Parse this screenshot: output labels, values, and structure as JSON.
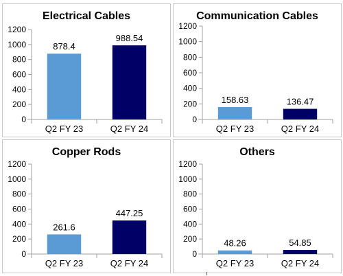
{
  "chart_data": [
    {
      "type": "bar",
      "title": "Electrical Cables",
      "categories": [
        "Q2 FY 23",
        "Q2 FY 24"
      ],
      "values": [
        878.4,
        988.54
      ],
      "value_labels": [
        "878.4",
        "988.54"
      ],
      "colors": [
        "#5b9bd5",
        "#000066"
      ],
      "ylim": [
        0,
        1200
      ],
      "yticks": [
        0,
        200,
        400,
        600,
        800,
        1000,
        1200
      ],
      "grid": false,
      "legend": "none"
    },
    {
      "type": "bar",
      "title": "Communication Cables",
      "categories": [
        "Q2 FY 23",
        "Q2 FY 24"
      ],
      "values": [
        158.63,
        136.47
      ],
      "value_labels": [
        "158.63",
        "136.47"
      ],
      "colors": [
        "#5b9bd5",
        "#000066"
      ],
      "ylim": [
        0,
        1200
      ],
      "yticks": [
        0,
        200,
        400,
        600,
        800,
        1000,
        1200
      ],
      "grid": false,
      "legend": "none"
    },
    {
      "type": "bar",
      "title": "Copper Rods",
      "categories": [
        "Q2 FY 23",
        "Q2 FY 24"
      ],
      "values": [
        261.6,
        447.25
      ],
      "value_labels": [
        "261.6",
        "447.25"
      ],
      "colors": [
        "#5b9bd5",
        "#000066"
      ],
      "ylim": [
        0,
        1200
      ],
      "yticks": [
        0,
        200,
        400,
        600,
        800,
        1000,
        1200
      ],
      "grid": false,
      "legend": "none"
    },
    {
      "type": "bar",
      "title": "Others",
      "categories": [
        "Q2 FY 23",
        "Q2 FY 24"
      ],
      "values": [
        48.26,
        54.85
      ],
      "value_labels": [
        "48.26",
        "54.85"
      ],
      "colors": [
        "#5b9bd5",
        "#000066"
      ],
      "ylim": [
        0,
        1200
      ],
      "yticks": [
        0,
        200,
        400,
        600,
        800,
        1000,
        1200
      ],
      "grid": false,
      "legend": "none"
    }
  ]
}
